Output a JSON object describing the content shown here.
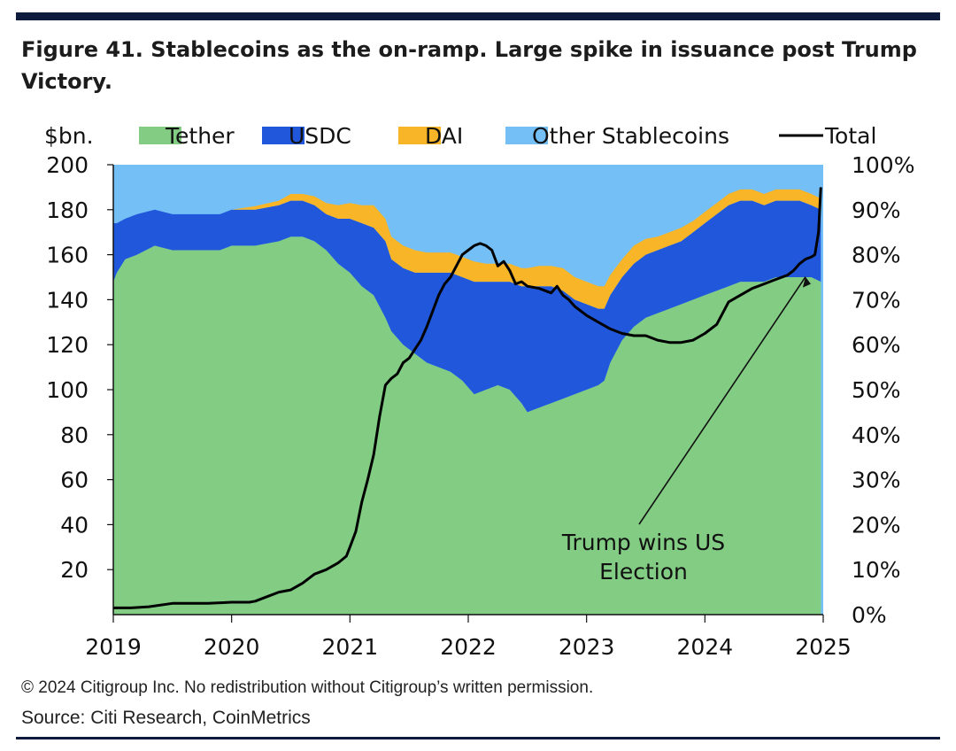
{
  "header": {
    "title_line1": "Figure 41. Stablecoins as the on-ramp. Large spike in issuance post Trump",
    "title_line2": "Victory."
  },
  "footer": {
    "copyright": "© 2024 Citigroup Inc. No redistribution without Citigroup’s written permission.",
    "source": "Source: Citi Research, CoinMetrics"
  },
  "colors": {
    "Tether": "#82cc83",
    "USDC": "#2158db",
    "DAI": "#f7b527",
    "Other Stablecoins": "#74c0f6",
    "Total": "#000000",
    "rules": "#0f1b3d"
  },
  "chart_data": {
    "type": "area",
    "ylabel": "$bn.",
    "ylim": [
      0,
      200
    ],
    "yticks": [
      "20",
      "40",
      "60",
      "80",
      "100",
      "120",
      "140",
      "160",
      "180",
      "200"
    ],
    "y2lim": [
      0,
      100
    ],
    "y2ticks": [
      "0%",
      "10%",
      "20%",
      "30%",
      "40%",
      "50%",
      "60%",
      "70%",
      "80%",
      "90%",
      "100%"
    ],
    "xlim": [
      2019,
      2025
    ],
    "xticks": [
      "2019",
      "2020",
      "2021",
      "2022",
      "2023",
      "2024",
      "2025"
    ],
    "legend": [
      "Tether",
      "USDC",
      "DAI",
      "Other Stablecoins",
      "Total"
    ],
    "legend_position": "top",
    "stacked_share": {
      "axis": "right",
      "x": [
        2019.0,
        2019.03,
        2019.1,
        2019.2,
        2019.35,
        2019.5,
        2019.7,
        2019.9,
        2020.0,
        2020.2,
        2020.4,
        2020.5,
        2020.6,
        2020.7,
        2020.8,
        2020.9,
        2021.0,
        2021.1,
        2021.2,
        2021.3,
        2021.35,
        2021.45,
        2021.55,
        2021.65,
        2021.75,
        2021.85,
        2021.95,
        2022.05,
        2022.15,
        2022.25,
        2022.35,
        2022.45,
        2022.5,
        2022.6,
        2022.7,
        2022.8,
        2022.9,
        2023.0,
        2023.1,
        2023.15,
        2023.2,
        2023.3,
        2023.4,
        2023.5,
        2023.6,
        2023.7,
        2023.8,
        2023.9,
        2024.0,
        2024.1,
        2024.2,
        2024.3,
        2024.4,
        2024.5,
        2024.6,
        2024.7,
        2024.8,
        2024.9,
        2024.98
      ],
      "series": [
        {
          "name": "Tether",
          "values": [
            74,
            76,
            79,
            80,
            82,
            81,
            81,
            81,
            82,
            82,
            83,
            84,
            84,
            83,
            81,
            78,
            76,
            73,
            71,
            66,
            63,
            60,
            58,
            56,
            55,
            54,
            52,
            49,
            50,
            51,
            50,
            47,
            45,
            46,
            47,
            48,
            49,
            50,
            51,
            52,
            56,
            61,
            64,
            66,
            67,
            68,
            69,
            70,
            71,
            72,
            73,
            74,
            74,
            74,
            75,
            75,
            75,
            75,
            74
          ]
        },
        {
          "name": "USDC",
          "values": [
            13,
            11,
            9,
            9,
            8,
            8,
            8,
            8,
            8,
            8,
            8,
            8,
            8,
            8,
            8,
            10,
            12,
            14,
            15,
            17,
            16,
            17,
            18,
            20,
            21,
            22,
            23,
            25,
            24,
            23,
            24,
            26,
            28,
            27,
            26,
            24,
            21,
            19,
            17,
            16,
            15,
            14,
            14,
            14,
            14,
            14,
            14,
            15,
            16,
            17,
            18,
            18,
            18,
            17,
            17,
            17,
            17,
            16,
            16
          ]
        },
        {
          "name": "DAI",
          "values": [
            0,
            0,
            0,
            0,
            0,
            0,
            0,
            0,
            0,
            0.8,
            1,
            1.5,
            1.5,
            2,
            2.5,
            3,
            3.5,
            4,
            5,
            5,
            5,
            5,
            5,
            4.5,
            4.5,
            4.5,
            4.5,
            4.5,
            4,
            4,
            4,
            4,
            4,
            4.5,
            4.5,
            5,
            5,
            5,
            5,
            5,
            4.5,
            4,
            4,
            3.5,
            3,
            3,
            3,
            2.5,
            2.5,
            2.5,
            2.5,
            2.5,
            2.5,
            2.5,
            2.5,
            2.5,
            2.5,
            2.5,
            2.5
          ]
        }
      ],
      "remainder": "Other Stablecoins"
    },
    "total": {
      "axis": "left",
      "x": [
        2019.0,
        2019.15,
        2019.3,
        2019.5,
        2019.8,
        2020.0,
        2020.15,
        2020.2,
        2020.3,
        2020.4,
        2020.5,
        2020.6,
        2020.7,
        2020.8,
        2020.9,
        2020.97,
        2021.0,
        2021.05,
        2021.1,
        2021.15,
        2021.2,
        2021.25,
        2021.3,
        2021.35,
        2021.4,
        2021.45,
        2021.5,
        2021.55,
        2021.6,
        2021.65,
        2021.7,
        2021.75,
        2021.8,
        2021.85,
        2021.9,
        2021.95,
        2022.0,
        2022.05,
        2022.1,
        2022.15,
        2022.2,
        2022.25,
        2022.3,
        2022.35,
        2022.4,
        2022.45,
        2022.5,
        2022.6,
        2022.7,
        2022.75,
        2022.8,
        2022.85,
        2022.9,
        2023.0,
        2023.1,
        2023.2,
        2023.3,
        2023.4,
        2023.5,
        2023.6,
        2023.7,
        2023.8,
        2023.9,
        2024.0,
        2024.1,
        2024.2,
        2024.3,
        2024.4,
        2024.5,
        2024.6,
        2024.7,
        2024.75,
        2024.8,
        2024.85,
        2024.9,
        2024.93,
        2024.96,
        2024.98
      ],
      "values": [
        3,
        3,
        3.5,
        5,
        5,
        5.5,
        5.5,
        6,
        8,
        10,
        11,
        14,
        18,
        20,
        23,
        26,
        30,
        37,
        50,
        60,
        71,
        88,
        102,
        105,
        107,
        112,
        114,
        118,
        122,
        128,
        135,
        142,
        147,
        150,
        155,
        160,
        162,
        164,
        165,
        164,
        162,
        155,
        157,
        153,
        147,
        148,
        146,
        145,
        143,
        146,
        142,
        140,
        137,
        133,
        130,
        127,
        125,
        124,
        124,
        122,
        121,
        121,
        122,
        125,
        129,
        139,
        142,
        145,
        147,
        149,
        151,
        153,
        156,
        158,
        159,
        160,
        170,
        190
      ]
    },
    "annotation": {
      "text_line1": "Trump wins US",
      "text_line2": "Election",
      "points_to_x": 2024.85
    }
  }
}
